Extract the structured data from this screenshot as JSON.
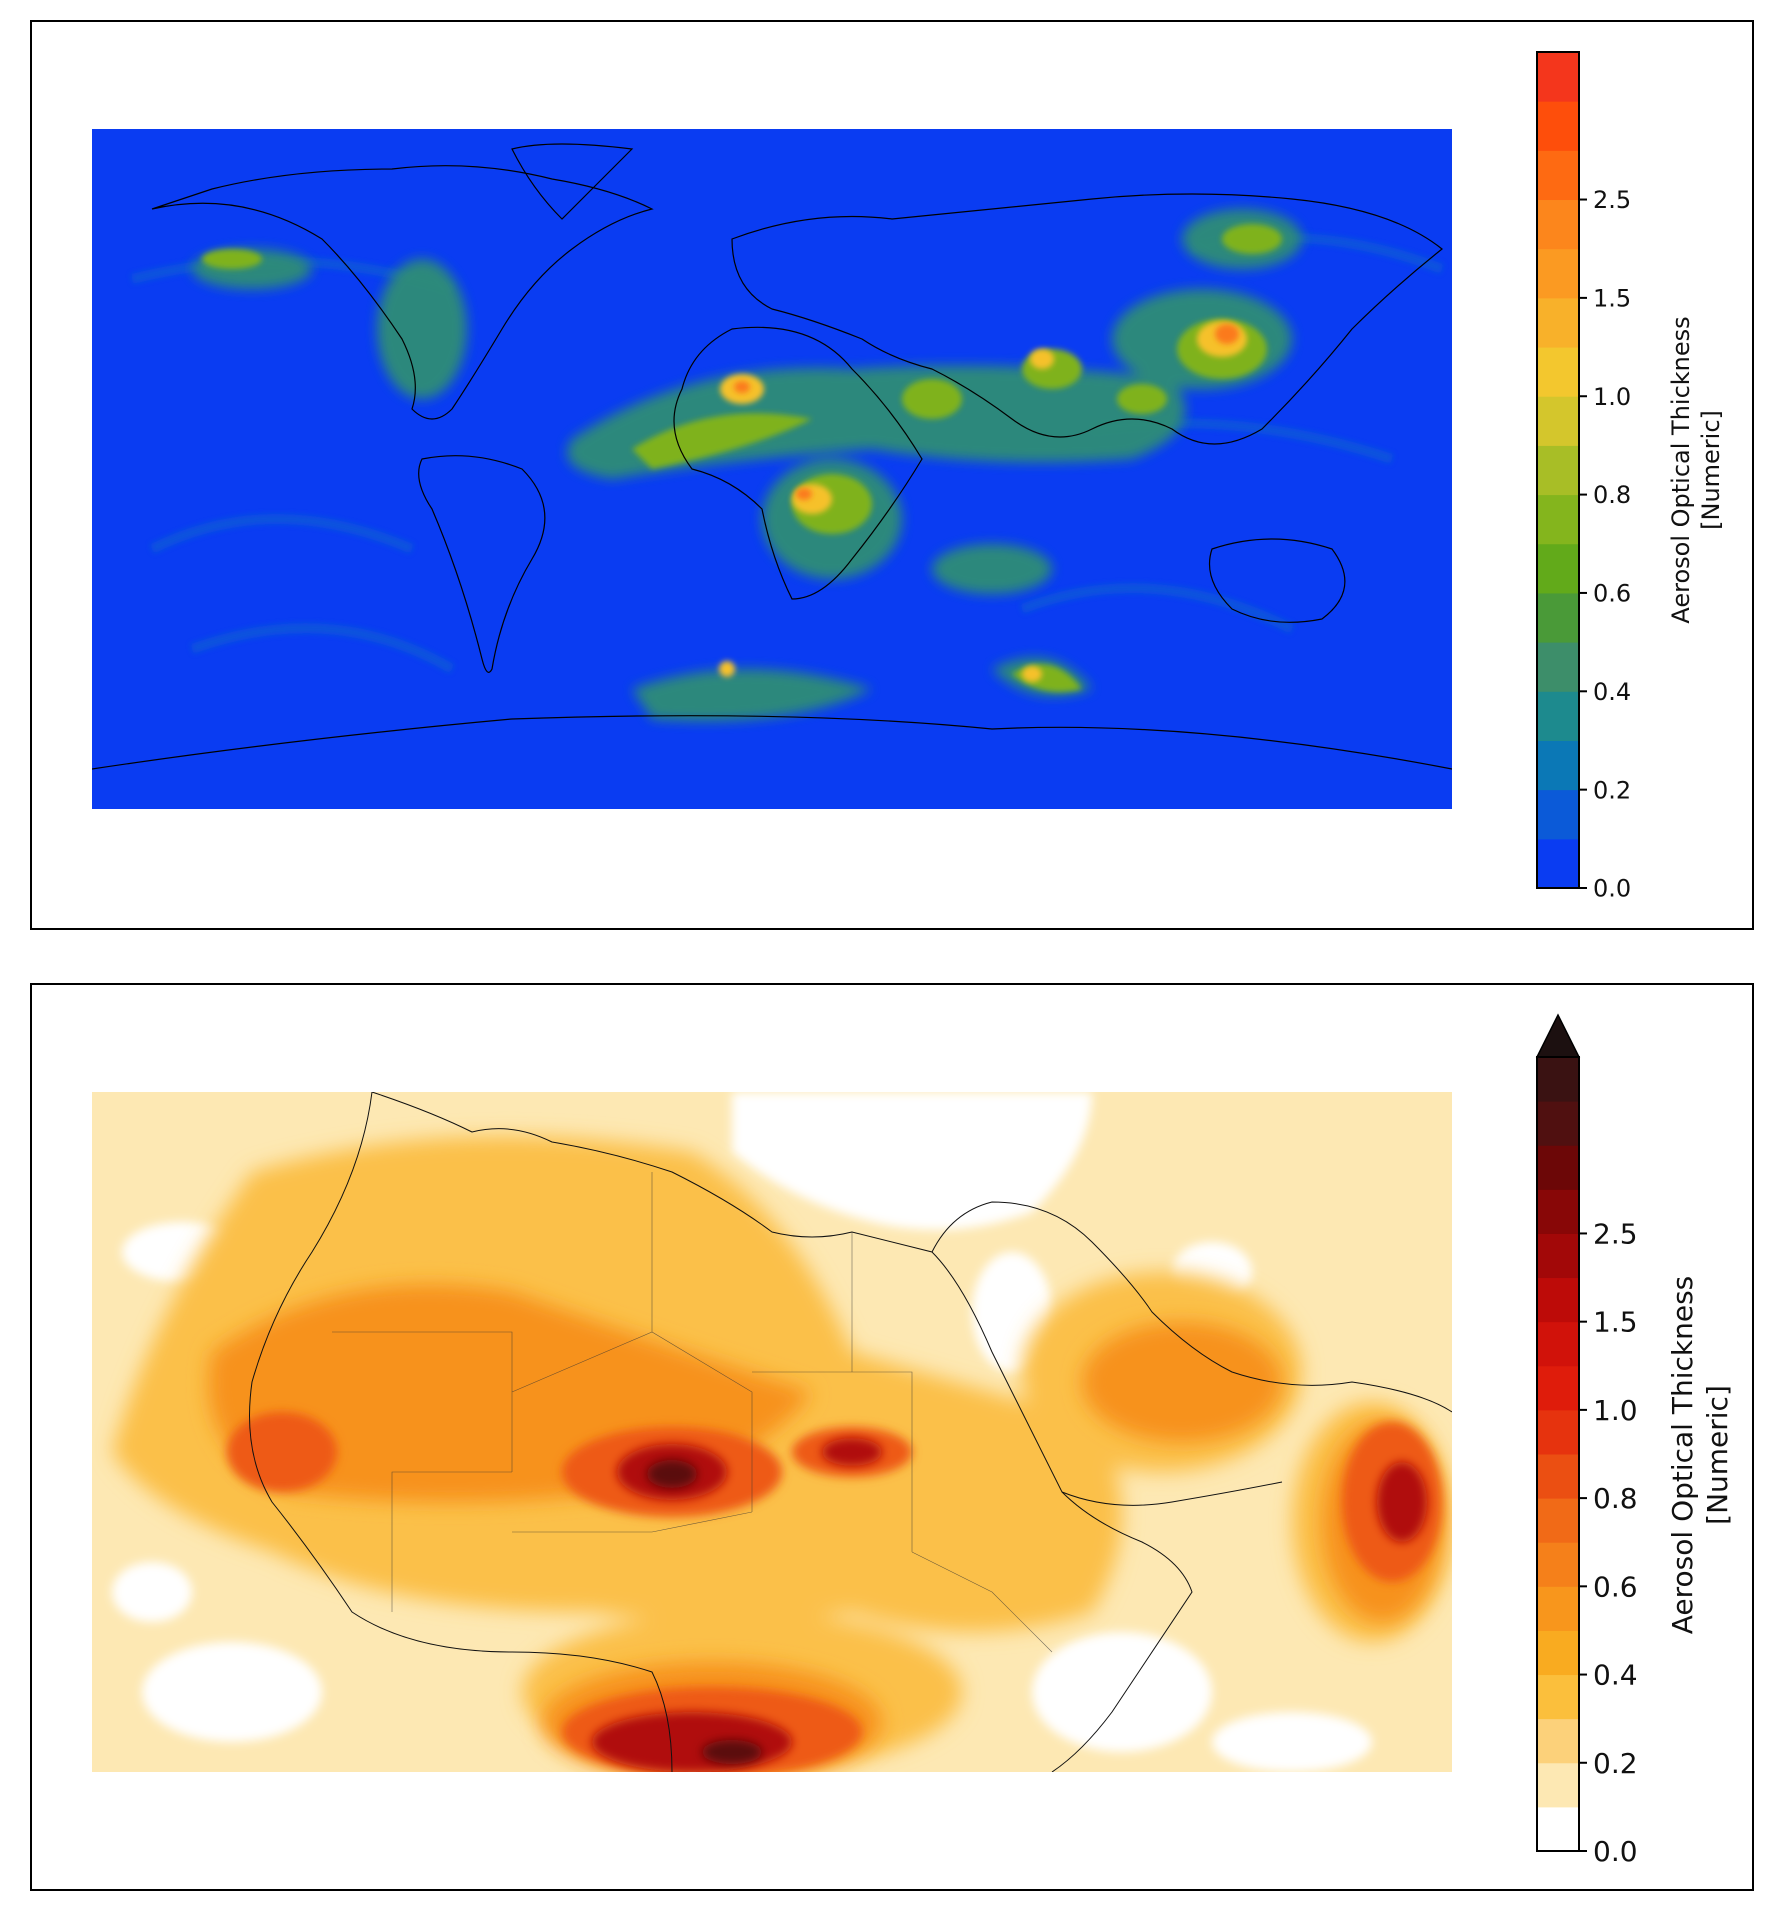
{
  "panels": [
    {
      "id": "global",
      "colorbar": {
        "label_line1": "Aerosol Optical Thickness",
        "label_line2": "[Numeric]",
        "ticks": [
          "0.0",
          "0.2",
          "0.4",
          "0.6",
          "0.8",
          "1.0",
          "1.5",
          "2.5"
        ],
        "colors": [
          "#0a3cf2",
          "#0b5ad8",
          "#0b78b6",
          "#1d8a8e",
          "#3d8e6a",
          "#4a9a38",
          "#62aa1a",
          "#84b51d",
          "#a8be26",
          "#d4c62c",
          "#f3c72e",
          "#f8b12a",
          "#fb9a22",
          "#fc861c",
          "#fe6a12",
          "#fe4e0b",
          "#f4361c"
        ],
        "extend_arrow": false
      }
    },
    {
      "id": "north-africa",
      "colorbar": {
        "label_line1": "Aerosol Optical Thickness",
        "label_line2": "[Numeric]",
        "ticks": [
          "0.0",
          "0.2",
          "0.4",
          "0.6",
          "0.8",
          "1.0",
          "1.5",
          "2.5"
        ],
        "colors": [
          "#ffffff",
          "#fde8b3",
          "#fcd17a",
          "#fbbf3c",
          "#f9ab20",
          "#f8961c",
          "#f5801a",
          "#f16a17",
          "#eb4f12",
          "#e6330e",
          "#df1c0b",
          "#d1120a",
          "#bd0b08",
          "#a20808",
          "#880707",
          "#6c0707",
          "#501010",
          "#3a1212"
        ],
        "extend_arrow": true
      }
    }
  ]
}
